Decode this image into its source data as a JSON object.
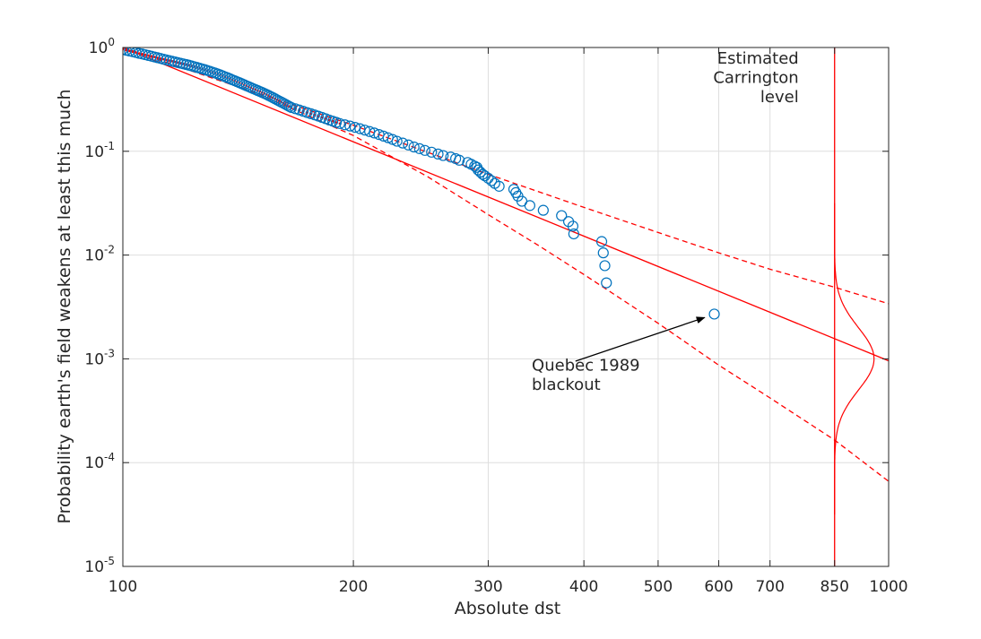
{
  "chart_data": {
    "type": "scatter",
    "xlabel": "Absolute dst",
    "ylabel": "Probability earth's field weakens at least this much",
    "xscale": "log",
    "yscale": "log",
    "xlim": [
      100,
      1000
    ],
    "ylim": [
      1e-05,
      1
    ],
    "grid": true,
    "x_ticks": [
      {
        "value": 100,
        "label": "100"
      },
      {
        "value": 200,
        "label": "200"
      },
      {
        "value": 300,
        "label": "300"
      },
      {
        "value": 400,
        "label": "400"
      },
      {
        "value": 500,
        "label": "500"
      },
      {
        "value": 600,
        "label": "600"
      },
      {
        "value": 700,
        "label": "700"
      },
      {
        "value": 850,
        "label": "850"
      },
      {
        "value": 1000,
        "label": "1000"
      }
    ],
    "y_ticks": [
      {
        "value": 1,
        "base": "10",
        "exp": "0"
      },
      {
        "value": 0.1,
        "base": "10",
        "exp": "-1"
      },
      {
        "value": 0.01,
        "base": "10",
        "exp": "-2"
      },
      {
        "value": 0.001,
        "base": "10",
        "exp": "-3"
      },
      {
        "value": 0.0001,
        "base": "10",
        "exp": "-4"
      },
      {
        "value": 1e-05,
        "base": "10",
        "exp": "-5"
      }
    ],
    "colors": {
      "observed": "#0072BD",
      "fit": "#FF0000",
      "axis": "#262626",
      "grid": "#dedede"
    },
    "observed": [
      [
        100,
        0.962
      ],
      [
        101,
        0.94
      ],
      [
        102,
        0.925
      ],
      [
        103,
        0.91
      ],
      [
        104,
        0.895
      ],
      [
        105,
        0.878
      ],
      [
        106,
        0.866
      ],
      [
        107,
        0.852
      ],
      [
        108,
        0.838
      ],
      [
        109,
        0.824
      ],
      [
        110,
        0.81
      ],
      [
        111,
        0.797
      ],
      [
        112,
        0.784
      ],
      [
        113,
        0.771
      ],
      [
        114,
        0.76
      ],
      [
        115,
        0.748
      ],
      [
        116,
        0.737
      ],
      [
        117,
        0.726
      ],
      [
        118,
        0.715
      ],
      [
        119,
        0.705
      ],
      [
        120,
        0.695
      ],
      [
        121,
        0.685
      ],
      [
        122,
        0.675
      ],
      [
        123,
        0.664
      ],
      [
        124,
        0.653
      ],
      [
        125,
        0.642
      ],
      [
        126,
        0.632
      ],
      [
        127,
        0.621
      ],
      [
        128,
        0.611
      ],
      [
        129,
        0.6
      ],
      [
        130,
        0.589
      ],
      [
        131,
        0.578
      ],
      [
        132,
        0.568
      ],
      [
        133,
        0.556
      ],
      [
        134,
        0.545
      ],
      [
        135,
        0.534
      ],
      [
        136,
        0.522
      ],
      [
        137,
        0.511
      ],
      [
        138,
        0.5
      ],
      [
        139,
        0.488
      ],
      [
        140,
        0.478
      ],
      [
        141,
        0.468
      ],
      [
        142,
        0.458
      ],
      [
        143,
        0.448
      ],
      [
        144,
        0.438
      ],
      [
        145,
        0.428
      ],
      [
        146,
        0.419
      ],
      [
        147,
        0.41
      ],
      [
        148,
        0.401
      ],
      [
        149,
        0.393
      ],
      [
        150,
        0.385
      ],
      [
        151,
        0.377
      ],
      [
        152,
        0.369
      ],
      [
        153,
        0.361
      ],
      [
        154,
        0.353
      ],
      [
        155,
        0.345
      ],
      [
        156,
        0.337
      ],
      [
        157,
        0.329
      ],
      [
        158,
        0.321
      ],
      [
        159,
        0.313
      ],
      [
        160,
        0.305
      ],
      [
        161,
        0.298
      ],
      [
        162,
        0.291
      ],
      [
        163,
        0.284
      ],
      [
        164,
        0.277
      ],
      [
        165,
        0.27
      ],
      [
        166,
        0.264
      ],
      [
        168,
        0.257
      ],
      [
        170,
        0.25
      ],
      [
        172,
        0.243
      ],
      [
        174,
        0.236
      ],
      [
        176,
        0.23
      ],
      [
        178,
        0.224
      ],
      [
        180,
        0.218
      ],
      [
        182,
        0.212
      ],
      [
        184,
        0.206
      ],
      [
        186,
        0.2
      ],
      [
        188,
        0.195
      ],
      [
        190,
        0.19
      ],
      [
        192,
        0.185
      ],
      [
        195,
        0.18
      ],
      [
        198,
        0.175
      ],
      [
        201,
        0.17
      ],
      [
        204,
        0.165
      ],
      [
        207,
        0.16
      ],
      [
        210,
        0.155
      ],
      [
        213,
        0.15
      ],
      [
        216,
        0.145
      ],
      [
        219,
        0.14
      ],
      [
        222,
        0.135
      ],
      [
        225,
        0.13
      ],
      [
        228,
        0.125
      ],
      [
        232,
        0.12
      ],
      [
        236,
        0.115
      ],
      [
        240,
        0.11
      ],
      [
        244,
        0.106
      ],
      [
        248,
        0.102
      ],
      [
        253,
        0.098
      ],
      [
        258,
        0.094
      ],
      [
        262,
        0.091
      ],
      [
        268,
        0.088
      ],
      [
        272,
        0.085
      ],
      [
        275,
        0.082
      ],
      [
        282,
        0.078
      ],
      [
        285,
        0.075
      ],
      [
        288,
        0.072
      ],
      [
        290,
        0.07
      ],
      [
        291,
        0.066
      ],
      [
        293,
        0.063
      ],
      [
        295,
        0.06
      ],
      [
        297,
        0.058
      ],
      [
        300,
        0.055
      ],
      [
        303,
        0.052
      ],
      [
        306,
        0.049
      ],
      [
        310,
        0.046
      ],
      [
        324,
        0.043
      ],
      [
        326,
        0.04
      ],
      [
        328,
        0.037
      ],
      [
        332,
        0.033
      ],
      [
        340,
        0.03
      ],
      [
        354,
        0.027
      ],
      [
        374,
        0.024
      ],
      [
        382,
        0.021
      ],
      [
        387,
        0.019
      ],
      [
        388,
        0.016
      ],
      [
        422,
        0.0135
      ],
      [
        424,
        0.0105
      ],
      [
        426,
        0.0079
      ],
      [
        428,
        0.0054
      ],
      [
        592,
        0.0027
      ]
    ],
    "fit_line": {
      "style": "solid",
      "points": [
        [
          100,
          1.0
        ],
        [
          1000,
          0.000958
        ]
      ]
    },
    "confidence_upper": {
      "style": "dashed",
      "points": [
        [
          100,
          1.0
        ],
        [
          200,
          0.178
        ],
        [
          300,
          0.06
        ],
        [
          400,
          0.0288
        ],
        [
          500,
          0.0165
        ],
        [
          600,
          0.0105
        ],
        [
          700,
          0.0073
        ],
        [
          850,
          0.0049
        ],
        [
          1000,
          0.0034
        ]
      ]
    },
    "confidence_lower": {
      "style": "dashed",
      "points": [
        [
          100,
          1.0
        ],
        [
          150,
          0.36
        ],
        [
          200,
          0.142
        ],
        [
          250,
          0.057
        ],
        [
          300,
          0.0245
        ],
        [
          350,
          0.0122
        ],
        [
          400,
          0.0065
        ],
        [
          500,
          0.0022
        ],
        [
          600,
          0.00087
        ],
        [
          700,
          0.00042
        ],
        [
          850,
          0.000165
        ],
        [
          1000,
          6.6e-05
        ]
      ]
    },
    "carrington_level": {
      "x": 850
    },
    "carrington_distribution": {
      "center_log10_y": -3.0,
      "sigma_log10": 0.3
    },
    "annotations": [
      {
        "name": "carrington-label",
        "lines": [
          "Estimated",
          "Carrington",
          "level"
        ],
        "x": 850,
        "y": 0.7,
        "align": "right"
      },
      {
        "name": "quebec-label",
        "lines": [
          "Quebec 1989",
          "blackout"
        ],
        "x": 342,
        "y": 0.00077,
        "align": "left",
        "arrow_from": [
          390,
          0.00095
        ],
        "arrow_to": [
          575,
          0.0025
        ]
      }
    ]
  }
}
